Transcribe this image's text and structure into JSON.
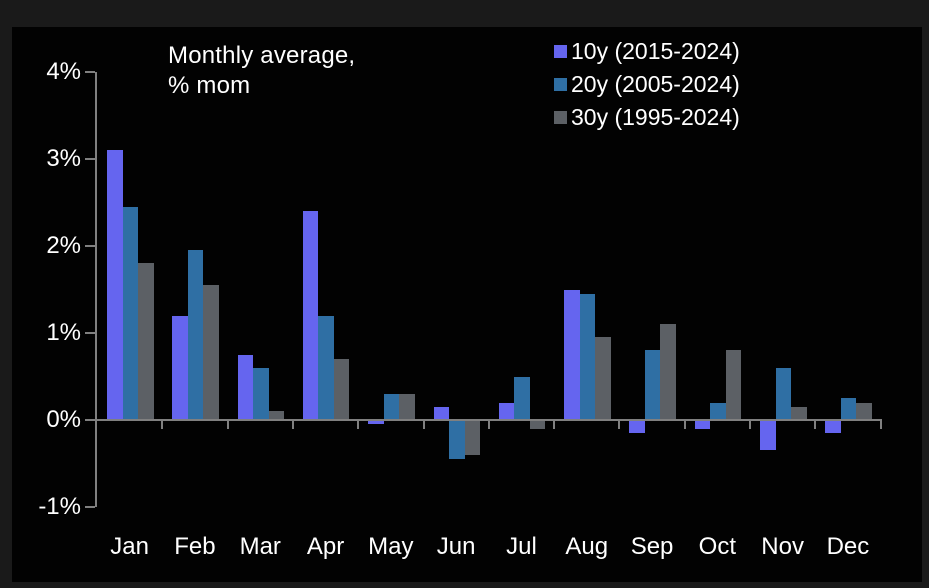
{
  "title": {
    "line1": "Monthly average,",
    "line2": "% mom"
  },
  "legend": {
    "items": [
      {
        "label": "10y (2015-2024)",
        "color": "#6565EF"
      },
      {
        "label": "20y (2005-2024)",
        "color": "#2F6FA4"
      },
      {
        "label": "30y (1995-2024)",
        "color": "#5C6065"
      }
    ]
  },
  "colors": {
    "background_outer": "#1a1a1a",
    "background_panel": "#020202",
    "axis": "#808080",
    "text": "#ffffff",
    "series_10y": "#6565EF",
    "series_20y": "#2F6FA4",
    "series_30y": "#5C6065"
  },
  "y_axis": {
    "tick_labels": [
      "4%",
      "3%",
      "2%",
      "1%",
      "0%",
      "-1%"
    ],
    "tick_values": [
      4,
      3,
      2,
      1,
      0,
      -1
    ]
  },
  "chart_data": {
    "type": "bar",
    "title": "Monthly average, % mom",
    "unit": "%",
    "categories": [
      "Jan",
      "Feb",
      "Mar",
      "Apr",
      "May",
      "Jun",
      "Jul",
      "Aug",
      "Sep",
      "Oct",
      "Nov",
      "Dec"
    ],
    "series": [
      {
        "name": "10y (2015-2024)",
        "color": "#6565EF",
        "values": [
          3.1,
          1.2,
          0.75,
          2.4,
          -0.05,
          0.15,
          0.2,
          1.5,
          -0.15,
          -0.1,
          -0.35,
          -0.15
        ]
      },
      {
        "name": "20y (2005-2024)",
        "color": "#2F6FA4",
        "values": [
          2.45,
          1.95,
          0.6,
          1.2,
          0.3,
          -0.45,
          0.5,
          1.45,
          0.8,
          0.2,
          0.6,
          0.25
        ]
      },
      {
        "name": "30y (1995-2024)",
        "color": "#5C6065",
        "values": [
          1.8,
          1.55,
          0.1,
          0.7,
          0.3,
          -0.4,
          -0.1,
          0.95,
          1.1,
          0.8,
          0.15,
          0.2
        ]
      }
    ],
    "ylim": [
      -1,
      4
    ],
    "y_step": 1,
    "grid": false,
    "legend_position": "top-right",
    "xlabel": "",
    "ylabel": ""
  }
}
